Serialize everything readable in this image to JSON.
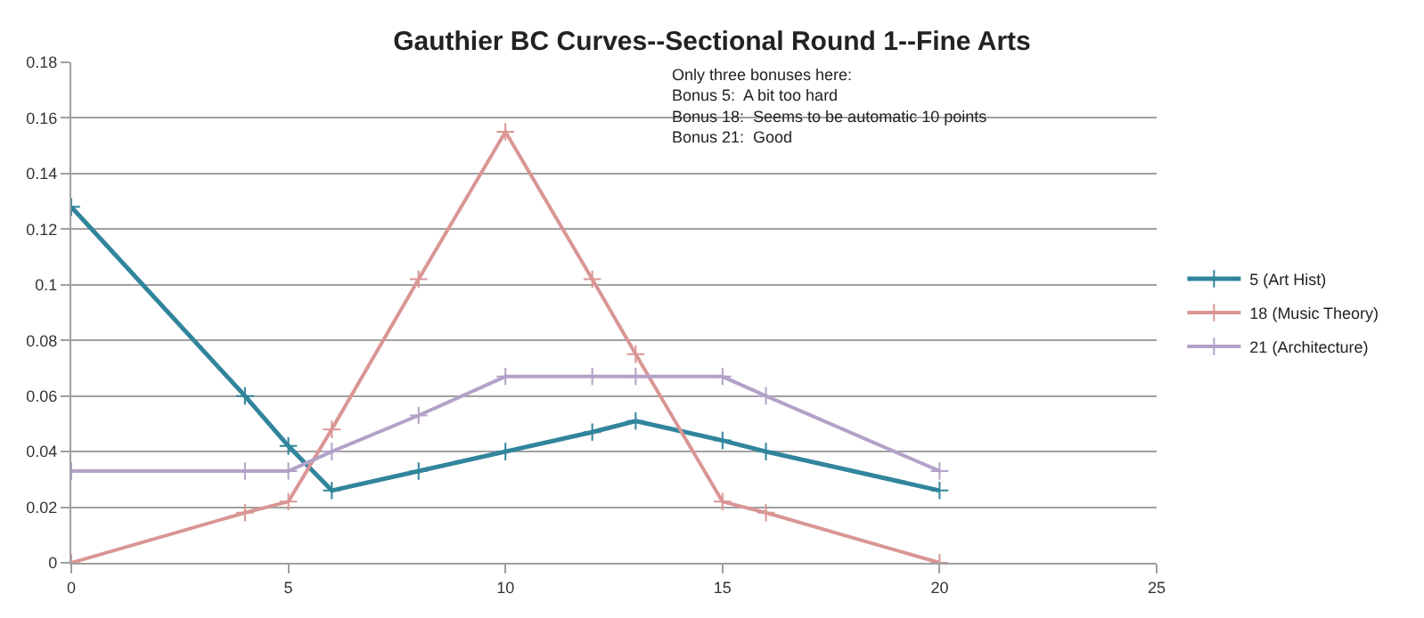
{
  "chart_data": {
    "type": "line",
    "title": "Gauthier BC Curves--Sectional Round 1--Fine Arts",
    "x": [
      0,
      4,
      5,
      6,
      8,
      10,
      12,
      13,
      15,
      16,
      20
    ],
    "series": [
      {
        "name": "5 (Art Hist)",
        "color": "#31859c",
        "marker": "cross",
        "values": [
          0.128,
          0.06,
          0.042,
          0.026,
          0.033,
          0.04,
          0.047,
          0.051,
          0.044,
          0.04,
          0.026
        ]
      },
      {
        "name": "18 (Music Theory)",
        "color": "#d99694",
        "marker": "cross",
        "values": [
          0,
          0.018,
          0.022,
          0.048,
          0.102,
          0.155,
          0.102,
          0.075,
          0.022,
          0.018,
          0
        ]
      },
      {
        "name": "21 (Architecture)",
        "color": "#b3a2c7",
        "marker": "cross",
        "values": [
          0.033,
          0.033,
          0.033,
          0.04,
          0.053,
          0.067,
          0.067,
          0.067,
          0.067,
          0.06,
          0.033
        ]
      }
    ],
    "xlim": [
      0,
      25
    ],
    "xticks": [
      0,
      5,
      10,
      15,
      20,
      25
    ],
    "ylim": [
      0,
      0.18
    ],
    "yticks": [
      0,
      0.02,
      0.04,
      0.06,
      0.08,
      0.1,
      0.12,
      0.14,
      0.16,
      0.18
    ],
    "grid": "y",
    "legend": "right",
    "line_style": "solid",
    "annotations": [
      "Only three bonuses here:\nBonus 5:  A bit too hard\nBonus 18:  Seems to be automatic 10 points\nBonus 21:  Good"
    ]
  }
}
